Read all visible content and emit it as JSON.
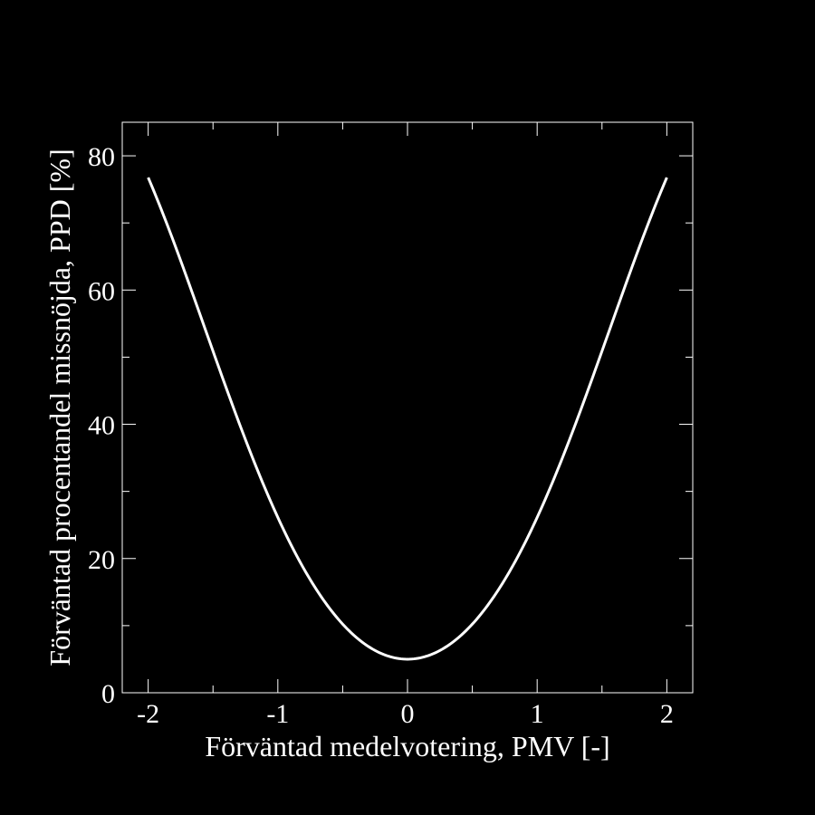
{
  "chart_data": {
    "type": "line",
    "title": "",
    "xlabel": "Förväntad medelvotering, PMV [-]",
    "ylabel": "Förväntad procentandel missnöjda, PPD [%]",
    "xlim": [
      -2.2,
      2.2
    ],
    "ylim": [
      0,
      85
    ],
    "x_ticks": [
      -2,
      -1,
      0,
      1,
      2
    ],
    "x_tick_labels": [
      "-2",
      "-1",
      "0",
      "1",
      "2"
    ],
    "x_minor_ticks": [
      -1.5,
      -0.5,
      0.5,
      1.5
    ],
    "y_ticks": [
      0,
      20,
      40,
      60,
      80
    ],
    "y_tick_labels": [
      "0",
      "20",
      "40",
      "60",
      "80"
    ],
    "y_minor_ticks": [
      10,
      30,
      50,
      70
    ],
    "grid": false,
    "background_color": "#000000",
    "foreground_color": "#ffffff",
    "series": [
      {
        "color": "#ffffff",
        "x": [
          -2.0,
          -1.8,
          -1.6,
          -1.4,
          -1.2,
          -1.0,
          -0.8,
          -0.6,
          -0.4,
          -0.2,
          0.0,
          0.2,
          0.4,
          0.6,
          0.8,
          1.0,
          1.2,
          1.4,
          1.6,
          1.8,
          2.0
        ],
        "y": [
          76.8,
          67.1,
          56.4,
          45.5,
          35.1,
          26.1,
          18.5,
          12.5,
          8.3,
          5.8,
          5.0,
          5.8,
          8.3,
          12.5,
          18.5,
          26.1,
          35.1,
          45.5,
          56.4,
          67.1,
          76.8
        ]
      }
    ]
  }
}
